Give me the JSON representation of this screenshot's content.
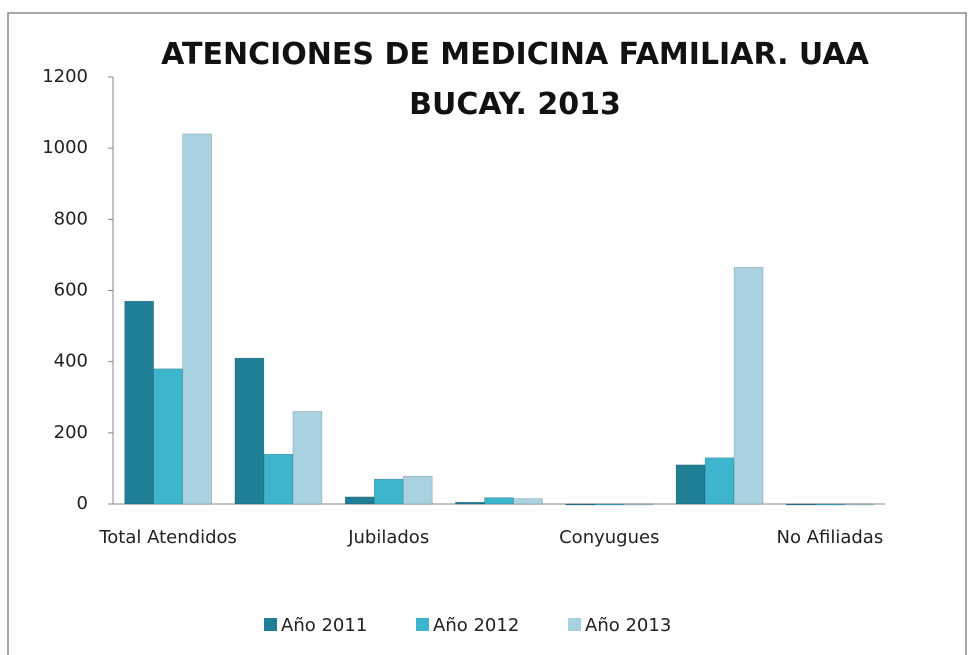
{
  "chart_data": {
    "type": "bar",
    "title": "ATENCIONES DE MEDICINA FAMILIAR. UAA BUCAY. 2013",
    "categories": [
      "Total Atendidos",
      null,
      "Jubilados",
      null,
      "Conyugues",
      null,
      "No Afiliadas"
    ],
    "series": [
      {
        "name": "Año 2011",
        "color": "#1f7f95",
        "values": [
          570,
          410,
          20,
          5,
          0,
          110,
          0
        ]
      },
      {
        "name": "Año 2012",
        "color": "#3cb5cd",
        "values": [
          380,
          140,
          70,
          18,
          0,
          130,
          0
        ]
      },
      {
        "name": "Año 2013",
        "color": "#a8d2df",
        "values": [
          1040,
          260,
          78,
          15,
          0,
          665,
          0
        ]
      }
    ],
    "ylim": [
      0,
      1200
    ],
    "yticks": [
      0,
      200,
      400,
      600,
      800,
      1000,
      1200
    ],
    "grid": false,
    "legend": "bottom"
  }
}
